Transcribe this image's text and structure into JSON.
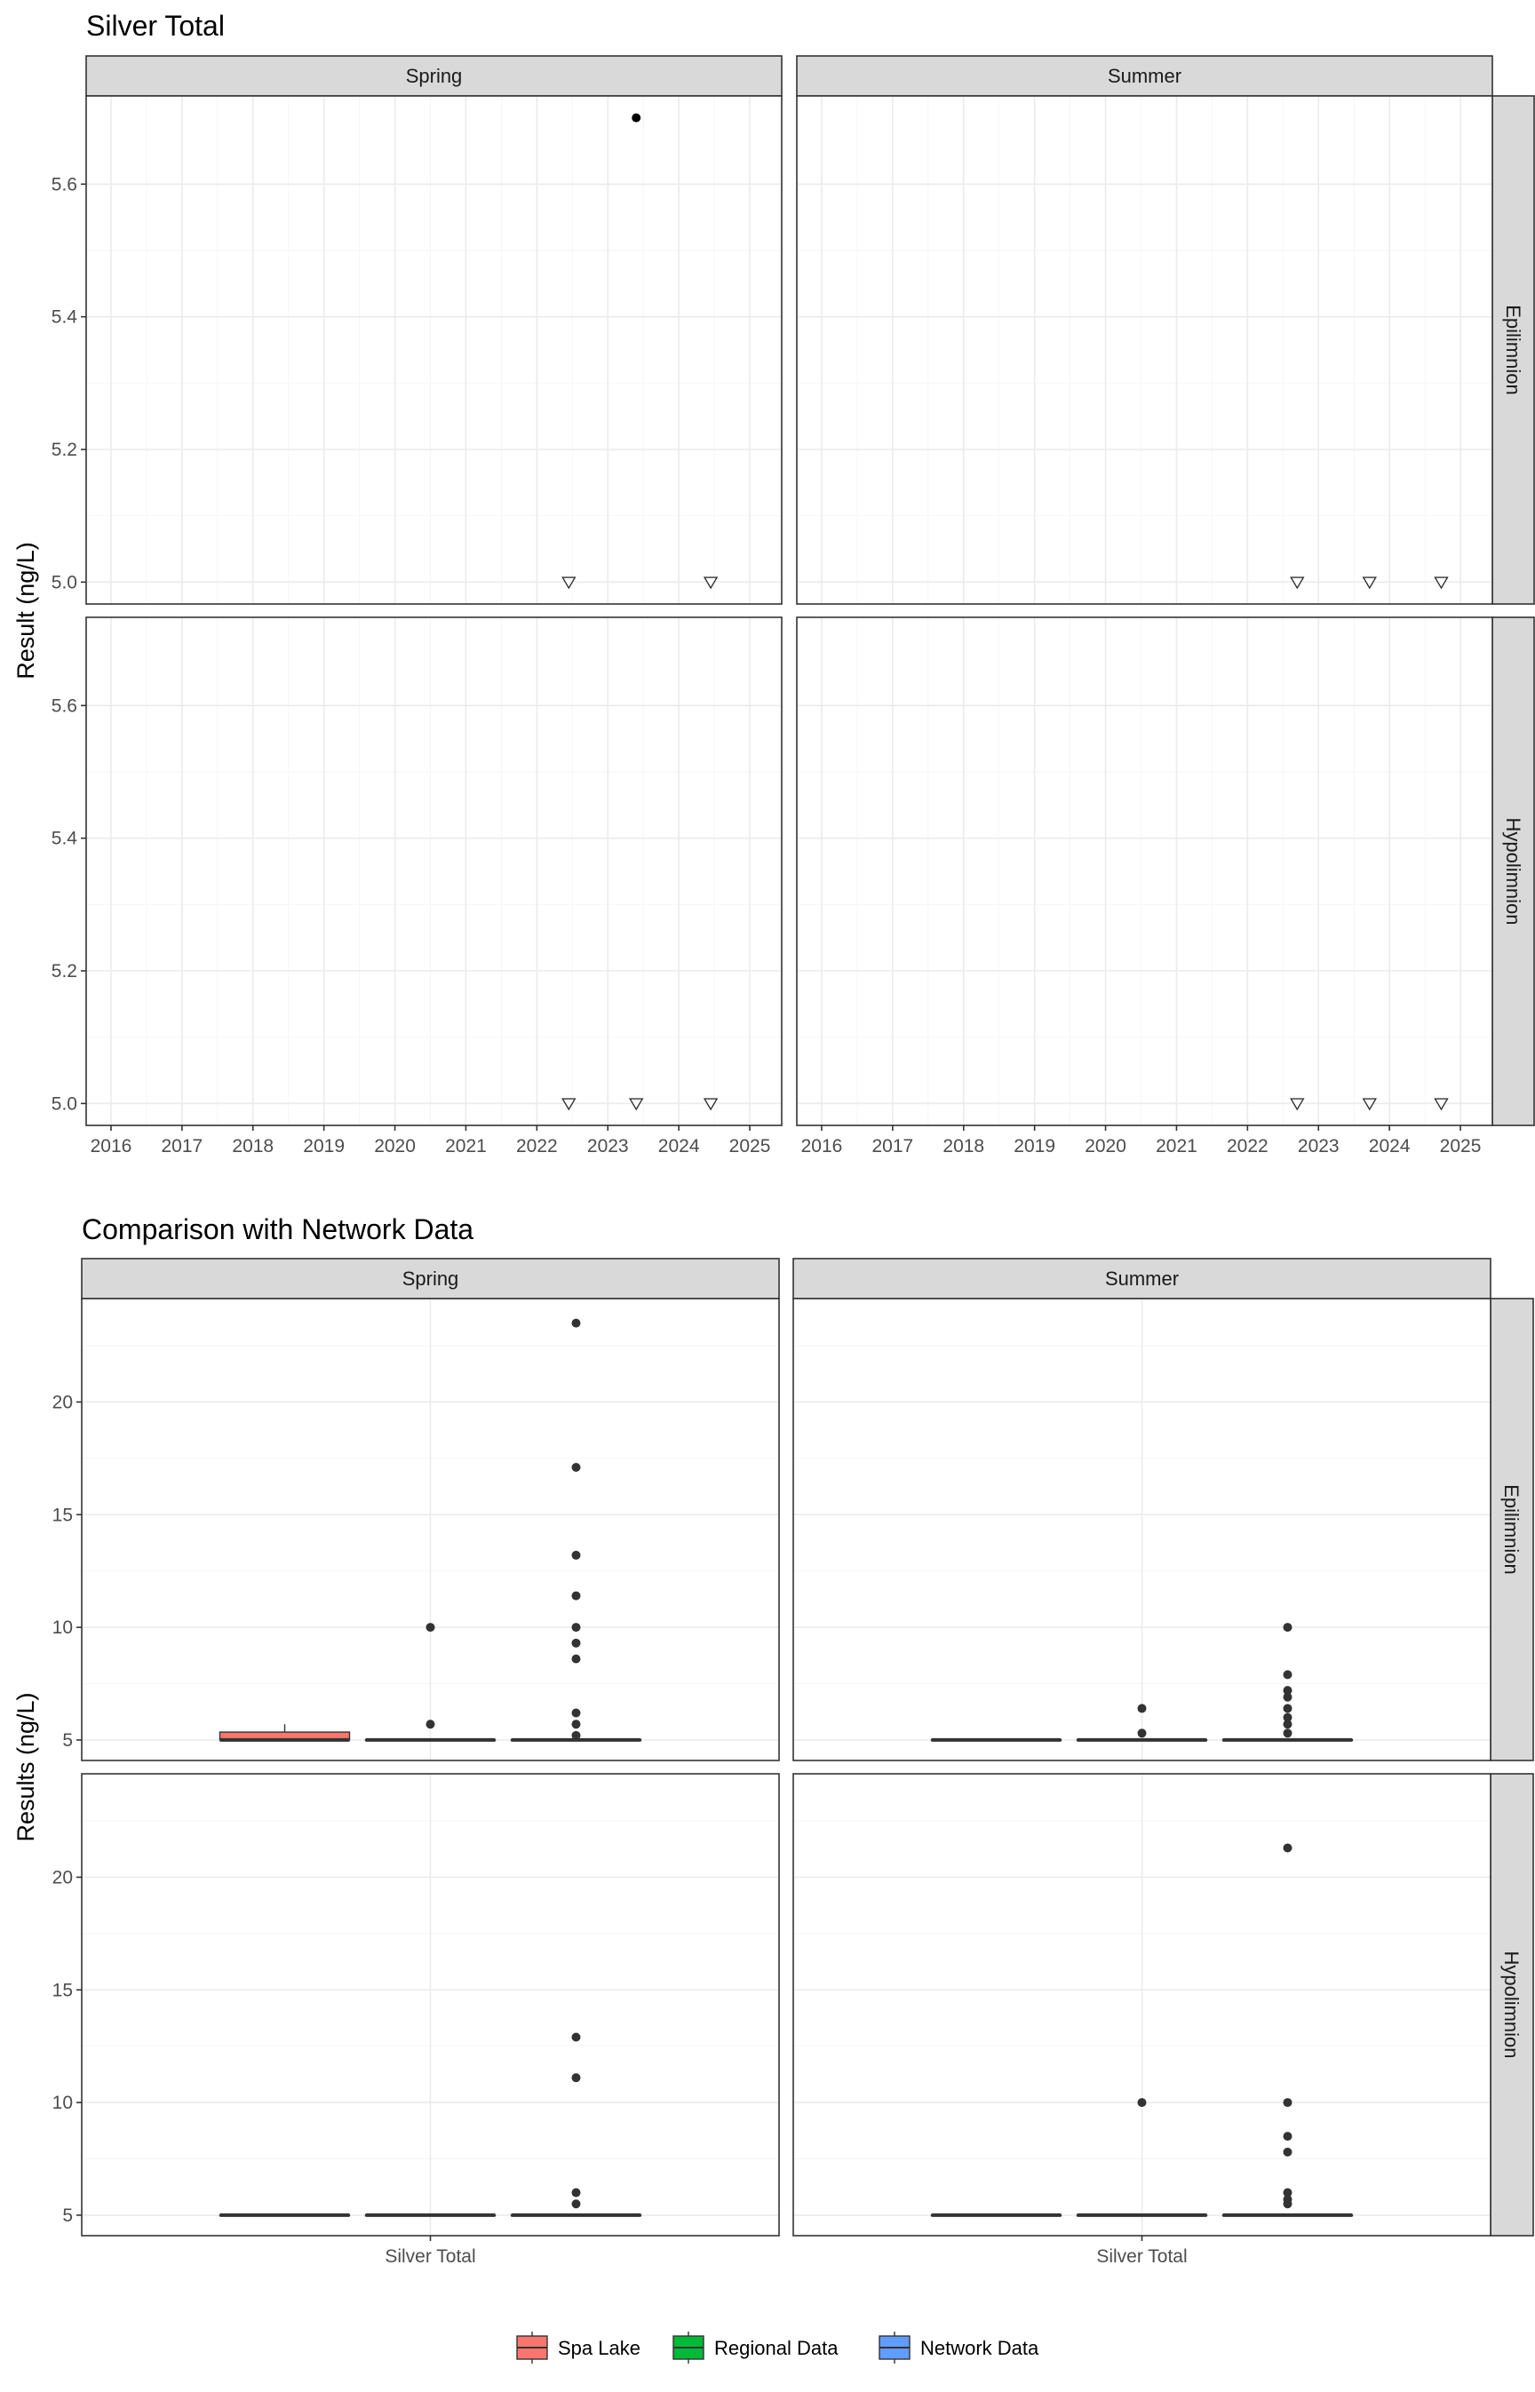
{
  "chart_data": [
    {
      "type": "scatter",
      "title": "Silver Total",
      "xlabel": "",
      "ylabel": "Result (ng/L)",
      "xlim": [
        2015.65,
        2025.45
      ],
      "ylim": [
        4.967,
        5.733
      ],
      "x_ticks": [
        "2016",
        "2017",
        "2018",
        "2019",
        "2020",
        "2021",
        "2022",
        "2023",
        "2024",
        "2025"
      ],
      "y_ticks": [
        "5.0",
        "5.2",
        "5.4",
        "5.6"
      ],
      "facet_cols": [
        "Spring",
        "Summer"
      ],
      "facet_rows": [
        "Epilimnion",
        "Hypolimnion"
      ],
      "grid": true,
      "marker_note": "open triangles mark values at 5.0; filled dot marks a measured value",
      "panels": [
        {
          "col": "Spring",
          "row": "Epilimnion",
          "points": [
            {
              "x": 2022.45,
              "y": 5.0,
              "shape": "triangle"
            },
            {
              "x": 2023.4,
              "y": 5.7,
              "shape": "dot"
            },
            {
              "x": 2024.45,
              "y": 5.0,
              "shape": "triangle"
            }
          ]
        },
        {
          "col": "Summer",
          "row": "Epilimnion",
          "points": [
            {
              "x": 2022.7,
              "y": 5.0,
              "shape": "triangle"
            },
            {
              "x": 2023.72,
              "y": 5.0,
              "shape": "triangle"
            },
            {
              "x": 2024.73,
              "y": 5.0,
              "shape": "triangle"
            }
          ]
        },
        {
          "col": "Spring",
          "row": "Hypolimnion",
          "points": [
            {
              "x": 2022.45,
              "y": 5.0,
              "shape": "triangle"
            },
            {
              "x": 2023.4,
              "y": 5.0,
              "shape": "triangle"
            },
            {
              "x": 2024.45,
              "y": 5.0,
              "shape": "triangle"
            }
          ]
        },
        {
          "col": "Summer",
          "row": "Hypolimnion",
          "points": [
            {
              "x": 2022.7,
              "y": 5.0,
              "shape": "triangle"
            },
            {
              "x": 2023.72,
              "y": 5.0,
              "shape": "triangle"
            },
            {
              "x": 2024.73,
              "y": 5.0,
              "shape": "triangle"
            }
          ]
        }
      ]
    },
    {
      "type": "box",
      "title": "Comparison with Network Data",
      "xlabel": "",
      "ylabel": "Results (ng/L)",
      "categories": [
        "Silver Total"
      ],
      "ylim": [
        4.09,
        24.59
      ],
      "y_ticks": [
        "5",
        "10",
        "15",
        "20"
      ],
      "facet_cols": [
        "Spring",
        "Summer"
      ],
      "facet_rows": [
        "Epilimnion",
        "Hypolimnion"
      ],
      "grid": true,
      "legend_position": "bottom",
      "groups": [
        {
          "name": "Spa Lake",
          "color": "#F8766D"
        },
        {
          "name": "Regional Data",
          "color": "#00BA38"
        },
        {
          "name": "Network Data",
          "color": "#619CFF"
        }
      ],
      "panels": [
        {
          "col": "Spring",
          "row": "Epilimnion",
          "boxes": [
            {
              "group": "Spa Lake",
              "q1": 5.0,
              "median": 5.0,
              "q3": 5.35,
              "whisker_low": 5.0,
              "whisker_high": 5.7,
              "outliers": []
            },
            {
              "group": "Regional Data",
              "q1": 5.0,
              "median": 5.0,
              "q3": 5.0,
              "whisker_low": 5.0,
              "whisker_high": 5.0,
              "outliers": [
                5.7,
                10.0
              ]
            },
            {
              "group": "Network Data",
              "q1": 5.0,
              "median": 5.0,
              "q3": 5.0,
              "whisker_low": 5.0,
              "whisker_high": 5.0,
              "outliers": [
                5.2,
                5.7,
                6.2,
                8.6,
                9.3,
                10.0,
                11.4,
                13.2,
                17.1,
                23.5
              ]
            }
          ]
        },
        {
          "col": "Summer",
          "row": "Epilimnion",
          "boxes": [
            {
              "group": "Spa Lake",
              "q1": 5.0,
              "median": 5.0,
              "q3": 5.0,
              "whisker_low": 5.0,
              "whisker_high": 5.0,
              "outliers": []
            },
            {
              "group": "Regional Data",
              "q1": 5.0,
              "median": 5.0,
              "q3": 5.0,
              "whisker_low": 5.0,
              "whisker_high": 5.0,
              "outliers": [
                5.3,
                6.4
              ]
            },
            {
              "group": "Network Data",
              "q1": 5.0,
              "median": 5.0,
              "q3": 5.0,
              "whisker_low": 5.0,
              "whisker_high": 5.0,
              "outliers": [
                5.3,
                5.7,
                6.0,
                6.4,
                6.9,
                7.2,
                7.9,
                10.0
              ]
            }
          ]
        },
        {
          "col": "Spring",
          "row": "Hypolimnion",
          "boxes": [
            {
              "group": "Spa Lake",
              "q1": 5.0,
              "median": 5.0,
              "q3": 5.0,
              "whisker_low": 5.0,
              "whisker_high": 5.0,
              "outliers": []
            },
            {
              "group": "Regional Data",
              "q1": 5.0,
              "median": 5.0,
              "q3": 5.0,
              "whisker_low": 5.0,
              "whisker_high": 5.0,
              "outliers": []
            },
            {
              "group": "Network Data",
              "q1": 5.0,
              "median": 5.0,
              "q3": 5.0,
              "whisker_low": 5.0,
              "whisker_high": 5.0,
              "outliers": [
                5.5,
                6.0,
                11.1,
                12.9
              ]
            }
          ]
        },
        {
          "col": "Summer",
          "row": "Hypolimnion",
          "boxes": [
            {
              "group": "Spa Lake",
              "q1": 5.0,
              "median": 5.0,
              "q3": 5.0,
              "whisker_low": 5.0,
              "whisker_high": 5.0,
              "outliers": []
            },
            {
              "group": "Regional Data",
              "q1": 5.0,
              "median": 5.0,
              "q3": 5.0,
              "whisker_low": 5.0,
              "whisker_high": 5.0,
              "outliers": [
                10.0
              ]
            },
            {
              "group": "Network Data",
              "q1": 5.0,
              "median": 5.0,
              "q3": 5.0,
              "whisker_low": 5.0,
              "whisker_high": 5.0,
              "outliers": [
                5.5,
                5.7,
                6.0,
                7.8,
                8.5,
                10.0,
                21.3
              ]
            }
          ]
        }
      ]
    }
  ]
}
